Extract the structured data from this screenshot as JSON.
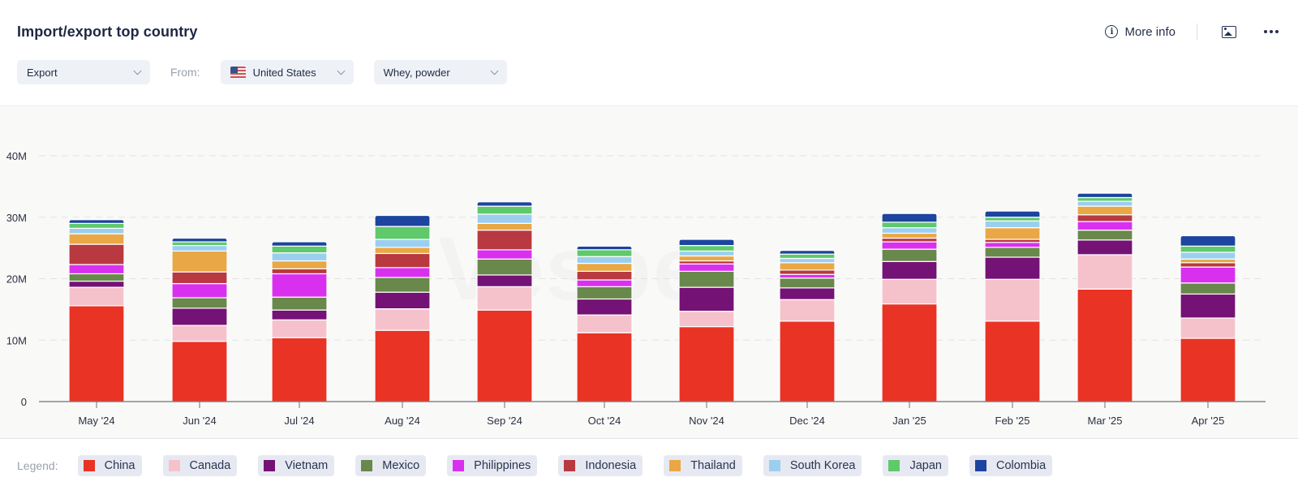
{
  "header": {
    "title": "Import/export top country",
    "more_info_label": "More info",
    "icons": {
      "info": "info-circle-icon",
      "image": "image-folder-icon",
      "more": "more-dots-icon"
    }
  },
  "filters": {
    "flow": {
      "value": "Export"
    },
    "from_label": "From:",
    "country": {
      "value": "United States",
      "flag": "us-flag-icon"
    },
    "product": {
      "value": "Whey, powder"
    }
  },
  "watermark": "Vespe",
  "legend": {
    "label": "Legend:"
  },
  "chart_data": {
    "type": "bar",
    "stacked": true,
    "title": "Import/export top country",
    "xlabel": "",
    "ylabel": "",
    "ylim": [
      0,
      40000000
    ],
    "yticks": [
      0,
      10000000,
      20000000,
      30000000,
      40000000
    ],
    "ytick_labels": [
      "0",
      "10M",
      "20M",
      "30M",
      "40M"
    ],
    "grid": true,
    "legend_position": "bottom",
    "categories": [
      "May '24",
      "Jun '24",
      "Jul '24",
      "Aug '24",
      "Sep '24",
      "Oct '24",
      "Nov '24",
      "Dec '24",
      "Jan '25",
      "Feb '25",
      "Mar '25",
      "Apr '25"
    ],
    "series": [
      {
        "name": "China",
        "color": "#e93324",
        "values": [
          15.6,
          9.8,
          10.4,
          11.6,
          14.9,
          11.2,
          12.2,
          13.1,
          15.9,
          13.1,
          18.3,
          10.3
        ]
      },
      {
        "name": "Canada",
        "color": "#f5c2cb",
        "values": [
          3.0,
          2.6,
          2.9,
          3.5,
          3.8,
          2.9,
          2.5,
          3.5,
          4.0,
          6.8,
          5.6,
          3.3
        ]
      },
      {
        "name": "Vietnam",
        "color": "#741275",
        "values": [
          1.0,
          2.8,
          1.6,
          2.7,
          1.9,
          2.6,
          3.9,
          1.9,
          2.9,
          3.6,
          2.4,
          3.9
        ]
      },
      {
        "name": "Mexico",
        "color": "#69884b",
        "values": [
          1.2,
          1.7,
          2.1,
          2.4,
          2.6,
          2.0,
          2.6,
          1.6,
          2.0,
          1.6,
          1.6,
          1.8
        ]
      },
      {
        "name": "Philippines",
        "color": "#d930f0",
        "values": [
          1.5,
          2.3,
          3.8,
          1.6,
          1.5,
          1.1,
          1.2,
          0.6,
          1.2,
          0.8,
          1.4,
          2.6
        ]
      },
      {
        "name": "Indonesia",
        "color": "#b93940",
        "values": [
          3.3,
          1.9,
          0.8,
          2.3,
          3.2,
          1.4,
          0.5,
          0.7,
          0.6,
          0.5,
          1.1,
          0.7
        ]
      },
      {
        "name": "Thailand",
        "color": "#e9a845",
        "values": [
          1.7,
          3.4,
          1.3,
          1.0,
          1.1,
          1.3,
          0.8,
          1.2,
          0.8,
          1.9,
          1.4,
          0.6
        ]
      },
      {
        "name": "South Korea",
        "color": "#9ccfef",
        "values": [
          0.9,
          0.9,
          1.3,
          1.3,
          1.5,
          1.1,
          0.8,
          0.7,
          0.9,
          1.1,
          0.8,
          1.1
        ]
      },
      {
        "name": "Japan",
        "color": "#5fc96b",
        "values": [
          0.8,
          0.6,
          1.1,
          2.1,
          1.3,
          1.1,
          0.9,
          0.7,
          0.9,
          0.6,
          0.6,
          1.0
        ]
      },
      {
        "name": "Colombia",
        "color": "#1d449e",
        "values": [
          0.6,
          0.6,
          0.7,
          1.8,
          0.7,
          0.6,
          1.0,
          0.6,
          1.4,
          1.0,
          0.7,
          1.7
        ]
      }
    ],
    "value_unit": "M"
  }
}
